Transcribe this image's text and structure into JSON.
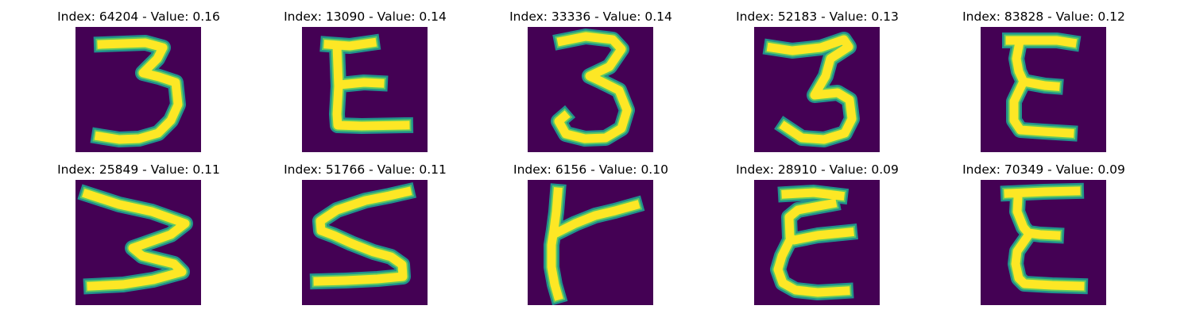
{
  "colors": {
    "background": "#440154",
    "stroke_outer": "#21918c",
    "stroke_mid": "#5ec962",
    "stroke_core": "#fde725"
  },
  "items": [
    {
      "title": "Index: 64204 - Value: 0.16",
      "index": 64204,
      "value": 0.16,
      "glyph": "3"
    },
    {
      "title": "Index: 13090 - Value: 0.14",
      "index": 13090,
      "value": 0.14,
      "glyph": "E"
    },
    {
      "title": "Index: 33336 - Value: 0.14",
      "index": 33336,
      "value": 0.14,
      "glyph": "3"
    },
    {
      "title": "Index: 52183 - Value: 0.13",
      "index": 52183,
      "value": 0.13,
      "glyph": "3"
    },
    {
      "title": "Index: 83828 - Value: 0.12",
      "index": 83828,
      "value": 0.12,
      "glyph": "E"
    },
    {
      "title": "Index: 25849 - Value: 0.11",
      "index": 25849,
      "value": 0.11,
      "glyph": "3"
    },
    {
      "title": "Index: 51766 - Value: 0.11",
      "index": 51766,
      "value": 0.11,
      "glyph": "S"
    },
    {
      "title": "Index: 6156 - Value: 0.10",
      "index": 6156,
      "value": 0.1,
      "glyph": "K"
    },
    {
      "title": "Index: 28910 - Value: 0.09",
      "index": 28910,
      "value": 0.09,
      "glyph": "E"
    },
    {
      "title": "Index: 70349 - Value: 0.09",
      "index": 70349,
      "value": 0.09,
      "glyph": "E"
    }
  ]
}
